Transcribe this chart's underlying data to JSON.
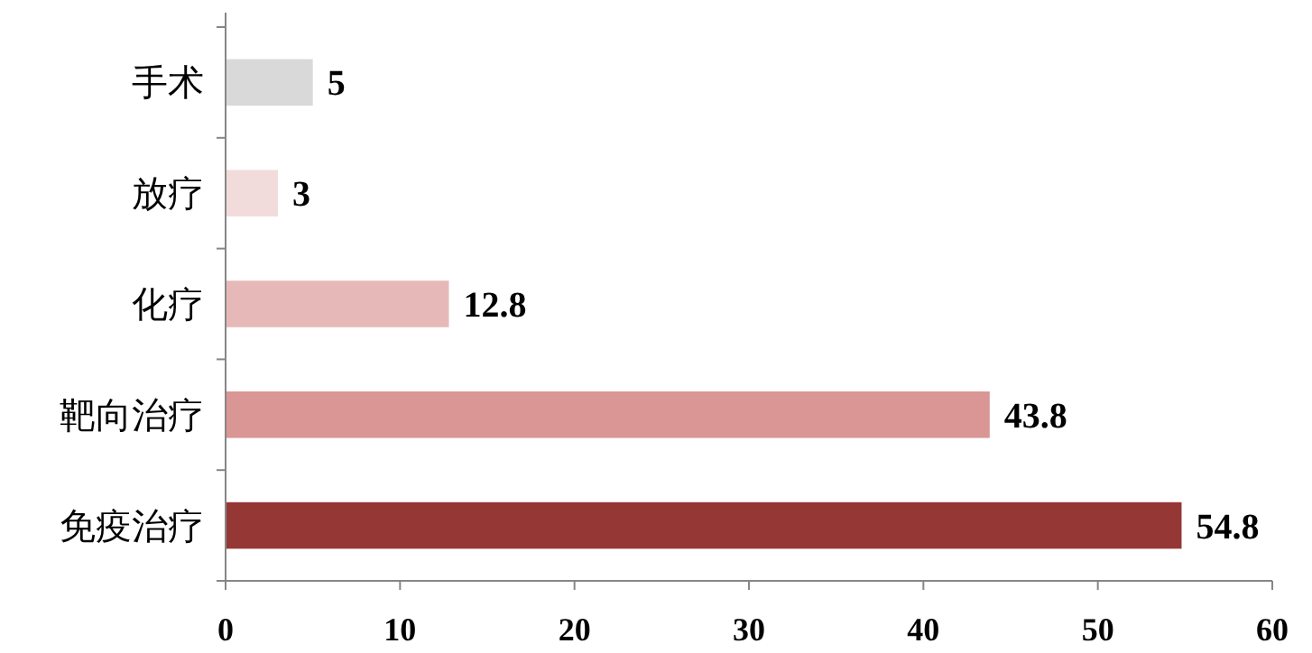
{
  "chart_data": {
    "type": "bar",
    "orientation": "horizontal",
    "categories": [
      "手术",
      "放疗",
      "化疗",
      "靶向治疗",
      "免疫治疗"
    ],
    "values": [
      5,
      3,
      12.8,
      43.8,
      54.8
    ],
    "colors": [
      "#d9d9d9",
      "#f2dcdb",
      "#e6b9b8",
      "#d99694",
      "#953735"
    ],
    "xlim": [
      0,
      60
    ],
    "xticks": [
      0,
      10,
      20,
      30,
      40,
      50,
      60
    ],
    "data_labels": true
  }
}
